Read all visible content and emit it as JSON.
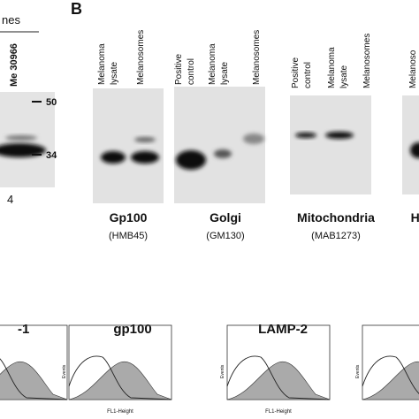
{
  "panel_a": {
    "header": "nes",
    "lane_label": "Me 30966",
    "markers": [
      "50",
      "34"
    ],
    "lane_number": "4"
  },
  "panel_b": {
    "letter": "B",
    "blots": [
      {
        "lanes": [
          [
            "Melanoma",
            "lysate"
          ],
          [
            "Melanosomes"
          ]
        ],
        "name": "Gp100",
        "antibody": "(HMB45)"
      },
      {
        "lanes": [
          [
            "Positive",
            "control"
          ],
          [
            "Melanoma",
            "lysate"
          ],
          [
            "Melanosomes"
          ]
        ],
        "name": "Golgi",
        "antibody": "(GM130)"
      },
      {
        "lanes": [
          [
            "Positive",
            "control"
          ],
          [
            "Melanoma",
            "lysate"
          ],
          [
            "Melanosomes"
          ]
        ],
        "name": "Mitochondria",
        "antibody": "(MAB1273)"
      },
      {
        "lanes": [
          [
            "Melanoso"
          ]
        ],
        "name": "HL"
      }
    ]
  },
  "panel_c": {
    "histograms": [
      {
        "title": "-1"
      },
      {
        "title": "gp100",
        "y_label": "Events",
        "x_label": "FL1-Height"
      },
      {
        "title": "LAMP-2",
        "y_label": "Events",
        "x_label": "FL1-Height"
      },
      {
        "y_label": "Events"
      }
    ]
  }
}
